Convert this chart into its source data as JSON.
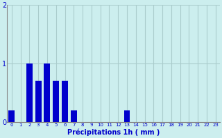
{
  "values": [
    0.2,
    0.0,
    1.0,
    0.7,
    1.0,
    0.7,
    0.7,
    0.2,
    0.0,
    0.0,
    0.0,
    0.0,
    0.0,
    0.2,
    0.0,
    0.0,
    0.0,
    0.0,
    0.0,
    0.0,
    0.0,
    0.0,
    0.0,
    0.0
  ],
  "categories": [
    0,
    1,
    2,
    3,
    4,
    5,
    6,
    7,
    8,
    9,
    10,
    11,
    12,
    13,
    14,
    15,
    16,
    17,
    18,
    19,
    20,
    21,
    22,
    23
  ],
  "bar_color": "#0000cc",
  "background_color": "#cceeee",
  "grid_color": "#aacccc",
  "xlabel": "Précipitations 1h ( mm )",
  "xlabel_color": "#0000cc",
  "tick_color": "#0000cc",
  "axis_color": "#888888",
  "ylim": [
    0,
    2
  ],
  "yticks": [
    0,
    1,
    2
  ],
  "bar_width": 0.7,
  "xlabel_fontsize": 7,
  "tick_fontsize": 5,
  "ytick_fontsize": 7
}
